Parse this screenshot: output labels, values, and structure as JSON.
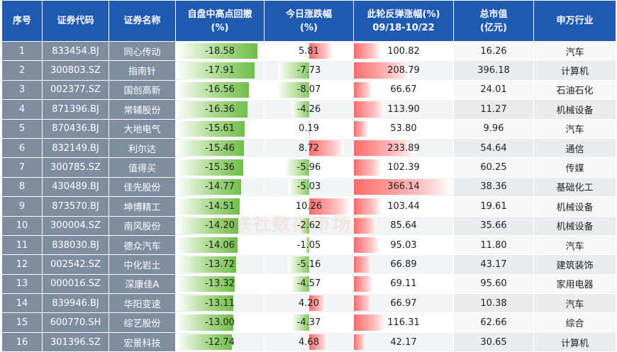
{
  "headers": {
    "idx": "序号",
    "code": "证券代码",
    "name": "证券名称",
    "drawdown": [
      "自盘中高点回撤",
      "(%)"
    ],
    "today": [
      "今日涨跌幅",
      "(%)"
    ],
    "rebound": [
      "此轮反弹涨幅(%)",
      "09/18-10/22"
    ],
    "mktcap": [
      "总市值",
      "(亿元)"
    ],
    "industry": "申万行业"
  },
  "watermark": "财联社数据市场部",
  "rows": [
    {
      "idx": "1",
      "code": "833454.BJ",
      "name": "同心传动",
      "drawdown": "-18.58",
      "dd": 18.58,
      "today": "5.81",
      "td": 5.81,
      "rebound": "100.82",
      "rb": 100.82,
      "mktcap": "16.26",
      "industry": "汽车"
    },
    {
      "idx": "2",
      "code": "300803.SZ",
      "name": "指南针",
      "drawdown": "-17.91",
      "dd": 17.91,
      "today": "-7.73",
      "td": -7.73,
      "rebound": "208.79",
      "rb": 208.79,
      "mktcap": "396.18",
      "industry": "计算机"
    },
    {
      "idx": "3",
      "code": "002377.SZ",
      "name": "国创高新",
      "drawdown": "-16.56",
      "dd": 16.56,
      "today": "-8.07",
      "td": -8.07,
      "rebound": "66.67",
      "rb": 66.67,
      "mktcap": "24.01",
      "industry": "石油石化"
    },
    {
      "idx": "4",
      "code": "871396.BJ",
      "name": "常辅股份",
      "drawdown": "-16.36",
      "dd": 16.36,
      "today": "-4.26",
      "td": -4.26,
      "rebound": "113.90",
      "rb": 113.9,
      "mktcap": "11.27",
      "industry": "机械设备"
    },
    {
      "idx": "5",
      "code": "870436.BJ",
      "name": "大地电气",
      "drawdown": "-15.61",
      "dd": 15.61,
      "today": "0.19",
      "td": 0.19,
      "rebound": "53.80",
      "rb": 53.8,
      "mktcap": "9.96",
      "industry": "汽车"
    },
    {
      "idx": "6",
      "code": "832149.BJ",
      "name": "利尔达",
      "drawdown": "-15.46",
      "dd": 15.46,
      "today": "8.72",
      "td": 8.72,
      "rebound": "233.89",
      "rb": 233.89,
      "mktcap": "54.64",
      "industry": "通信"
    },
    {
      "idx": "7",
      "code": "300785.SZ",
      "name": "值得买",
      "drawdown": "-15.36",
      "dd": 15.36,
      "today": "-5.96",
      "td": -5.96,
      "rebound": "102.39",
      "rb": 102.39,
      "mktcap": "60.25",
      "industry": "传媒"
    },
    {
      "idx": "8",
      "code": "430489.BJ",
      "name": "佳先股份",
      "drawdown": "-14.77",
      "dd": 14.77,
      "today": "-5.03",
      "td": -5.03,
      "rebound": "366.14",
      "rb": 366.14,
      "mktcap": "38.36",
      "industry": "基础化工"
    },
    {
      "idx": "9",
      "code": "873570.BJ",
      "name": "坤博精工",
      "drawdown": "-14.51",
      "dd": 14.51,
      "today": "10.26",
      "td": 10.26,
      "rebound": "103.44",
      "rb": 103.44,
      "mktcap": "19.61",
      "industry": "机械设备"
    },
    {
      "idx": "10",
      "code": "300004.SZ",
      "name": "南风股份",
      "drawdown": "-14.20",
      "dd": 14.2,
      "today": "-2.62",
      "td": -2.62,
      "rebound": "85.64",
      "rb": 85.64,
      "mktcap": "35.66",
      "industry": "机械设备"
    },
    {
      "idx": "11",
      "code": "838030.BJ",
      "name": "德众汽车",
      "drawdown": "-14.06",
      "dd": 14.06,
      "today": "-1.05",
      "td": -1.05,
      "rebound": "95.03",
      "rb": 95.03,
      "mktcap": "11.80",
      "industry": "汽车"
    },
    {
      "idx": "12",
      "code": "002542.SZ",
      "name": "中化岩土",
      "drawdown": "-13.72",
      "dd": 13.72,
      "today": "-5.16",
      "td": -5.16,
      "rebound": "66.89",
      "rb": 66.89,
      "mktcap": "43.17",
      "industry": "建筑装饰"
    },
    {
      "idx": "13",
      "code": "000016.SZ",
      "name": "深康佳A",
      "drawdown": "-13.32",
      "dd": 13.32,
      "today": "-4.57",
      "td": -4.57,
      "rebound": "69.11",
      "rb": 69.11,
      "mktcap": "95.60",
      "industry": "家用电器"
    },
    {
      "idx": "14",
      "code": "839946.BJ",
      "name": "华阳变速",
      "drawdown": "-13.11",
      "dd": 13.11,
      "today": "4.20",
      "td": 4.2,
      "rebound": "66.97",
      "rb": 66.97,
      "mktcap": "10.38",
      "industry": "汽车"
    },
    {
      "idx": "15",
      "code": "600770.SH",
      "name": "综艺股份",
      "drawdown": "-13.00",
      "dd": 13.0,
      "today": "-4.37",
      "td": -4.37,
      "rebound": "116.31",
      "rb": 116.31,
      "mktcap": "62.66",
      "industry": "综合"
    },
    {
      "idx": "16",
      "code": "301396.SZ",
      "name": "宏景科技",
      "drawdown": "-12.74",
      "dd": 12.74,
      "today": "4.68",
      "td": 4.68,
      "rebound": "42.17",
      "rb": 42.17,
      "mktcap": "30.65",
      "industry": "计算机"
    }
  ]
}
